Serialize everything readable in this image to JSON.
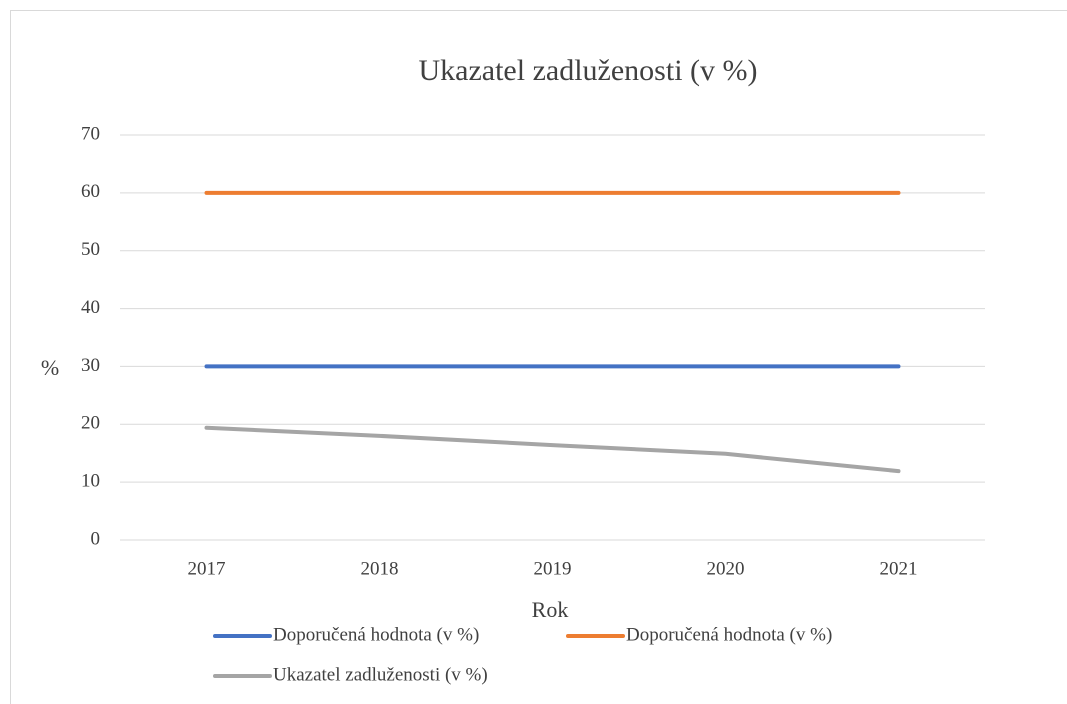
{
  "chart_data": {
    "type": "line",
    "title": "Ukazatel zadluženosti (v %)",
    "x_label": "Rok",
    "y_label": "%",
    "categories": [
      "2017",
      "2018",
      "2019",
      "2020",
      "2021"
    ],
    "series": [
      {
        "name": "Doporučená hodnota (v %)",
        "color": "#4472c4",
        "values": [
          30,
          30,
          30,
          30,
          30
        ]
      },
      {
        "name": "Doporučená hodnota (v %)",
        "color": "#ed7d31",
        "values": [
          60,
          60,
          60,
          60,
          60
        ]
      },
      {
        "name": "Ukazatel zadluženosti (v %)",
        "color": "#a5a5a5",
        "values": [
          19.4,
          18,
          16.4,
          14.9,
          11.9
        ]
      }
    ],
    "ylim": [
      0,
      70
    ],
    "yticks": [
      0,
      10,
      20,
      30,
      40,
      50,
      60,
      70
    ],
    "grid": true,
    "legend": "bottom"
  }
}
